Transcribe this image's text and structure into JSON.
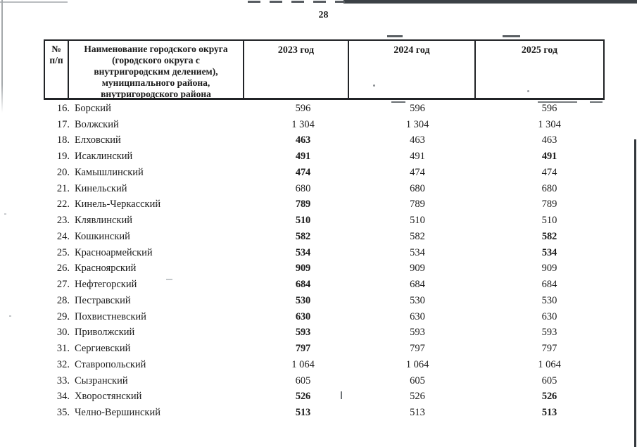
{
  "page": {
    "number": "28"
  },
  "colors": {
    "text": "#1b1b1b",
    "table_border": "#212326",
    "background": "#ffffff"
  },
  "table": {
    "headers": {
      "num": "№\nп/п",
      "name": "Наименование городского округа\n(городского округа с\nвнутригородским делением),\nмуниципального района,\nвнутригородского района",
      "year1": "2023 год",
      "year2": "2024 год",
      "year3": "2025 год"
    },
    "rows": [
      {
        "num": "16.",
        "name": "Борский",
        "values": [
          "596",
          "596",
          "596"
        ],
        "bold": [
          false,
          false,
          false
        ]
      },
      {
        "num": "17.",
        "name": "Волжский",
        "values": [
          "1 304",
          "1 304",
          "1 304"
        ],
        "bold": [
          false,
          false,
          false
        ]
      },
      {
        "num": "18.",
        "name": "Елховский",
        "values": [
          "463",
          "463",
          "463"
        ],
        "bold": [
          true,
          false,
          false
        ]
      },
      {
        "num": "19.",
        "name": "Исаклинский",
        "values": [
          "491",
          "491",
          "491"
        ],
        "bold": [
          true,
          false,
          true
        ]
      },
      {
        "num": "20.",
        "name": "Камышлинский",
        "values": [
          "474",
          "474",
          "474"
        ],
        "bold": [
          true,
          false,
          false
        ]
      },
      {
        "num": "21.",
        "name": "Кинельский",
        "values": [
          "680",
          "680",
          "680"
        ],
        "bold": [
          false,
          false,
          false
        ]
      },
      {
        "num": "22.",
        "name": "Кинель-Черкасский",
        "values": [
          "789",
          "789",
          "789"
        ],
        "bold": [
          true,
          false,
          false
        ]
      },
      {
        "num": "23.",
        "name": "Клявлинский",
        "values": [
          "510",
          "510",
          "510"
        ],
        "bold": [
          true,
          false,
          false
        ]
      },
      {
        "num": "24.",
        "name": "Кошкинский",
        "values": [
          "582",
          "582",
          "582"
        ],
        "bold": [
          true,
          false,
          true
        ]
      },
      {
        "num": "25.",
        "name": "Красноармейский",
        "values": [
          "534",
          "534",
          "534"
        ],
        "bold": [
          true,
          false,
          true
        ]
      },
      {
        "num": "26.",
        "name": "Красноярский",
        "values": [
          "909",
          "909",
          "909"
        ],
        "bold": [
          true,
          false,
          false
        ]
      },
      {
        "num": "27.",
        "name": "Нефтегорский",
        "values": [
          "684",
          "684",
          "684"
        ],
        "bold": [
          true,
          false,
          false
        ]
      },
      {
        "num": "28.",
        "name": "Пестравский",
        "values": [
          "530",
          "530",
          "530"
        ],
        "bold": [
          true,
          false,
          false
        ]
      },
      {
        "num": "29.",
        "name": "Похвистневский",
        "values": [
          "630",
          "630",
          "630"
        ],
        "bold": [
          true,
          false,
          false
        ]
      },
      {
        "num": "30.",
        "name": "Приволжский",
        "values": [
          "593",
          "593",
          "593"
        ],
        "bold": [
          true,
          false,
          false
        ]
      },
      {
        "num": "31.",
        "name": "Сергиевский",
        "values": [
          "797",
          "797",
          "797"
        ],
        "bold": [
          true,
          false,
          false
        ]
      },
      {
        "num": "32.",
        "name": "Ставропольский",
        "values": [
          "1 064",
          "1 064",
          "1 064"
        ],
        "bold": [
          false,
          false,
          false
        ]
      },
      {
        "num": "33.",
        "name": "Сызранский",
        "values": [
          "605",
          "605",
          "605"
        ],
        "bold": [
          false,
          false,
          false
        ]
      },
      {
        "num": "34.",
        "name": "Хворостянский",
        "values": [
          "526",
          "526",
          "526"
        ],
        "bold": [
          true,
          false,
          true
        ]
      },
      {
        "num": "35.",
        "name": "Челно-Вершинский",
        "values": [
          "513",
          "513",
          "513"
        ],
        "bold": [
          true,
          false,
          true
        ]
      }
    ]
  }
}
